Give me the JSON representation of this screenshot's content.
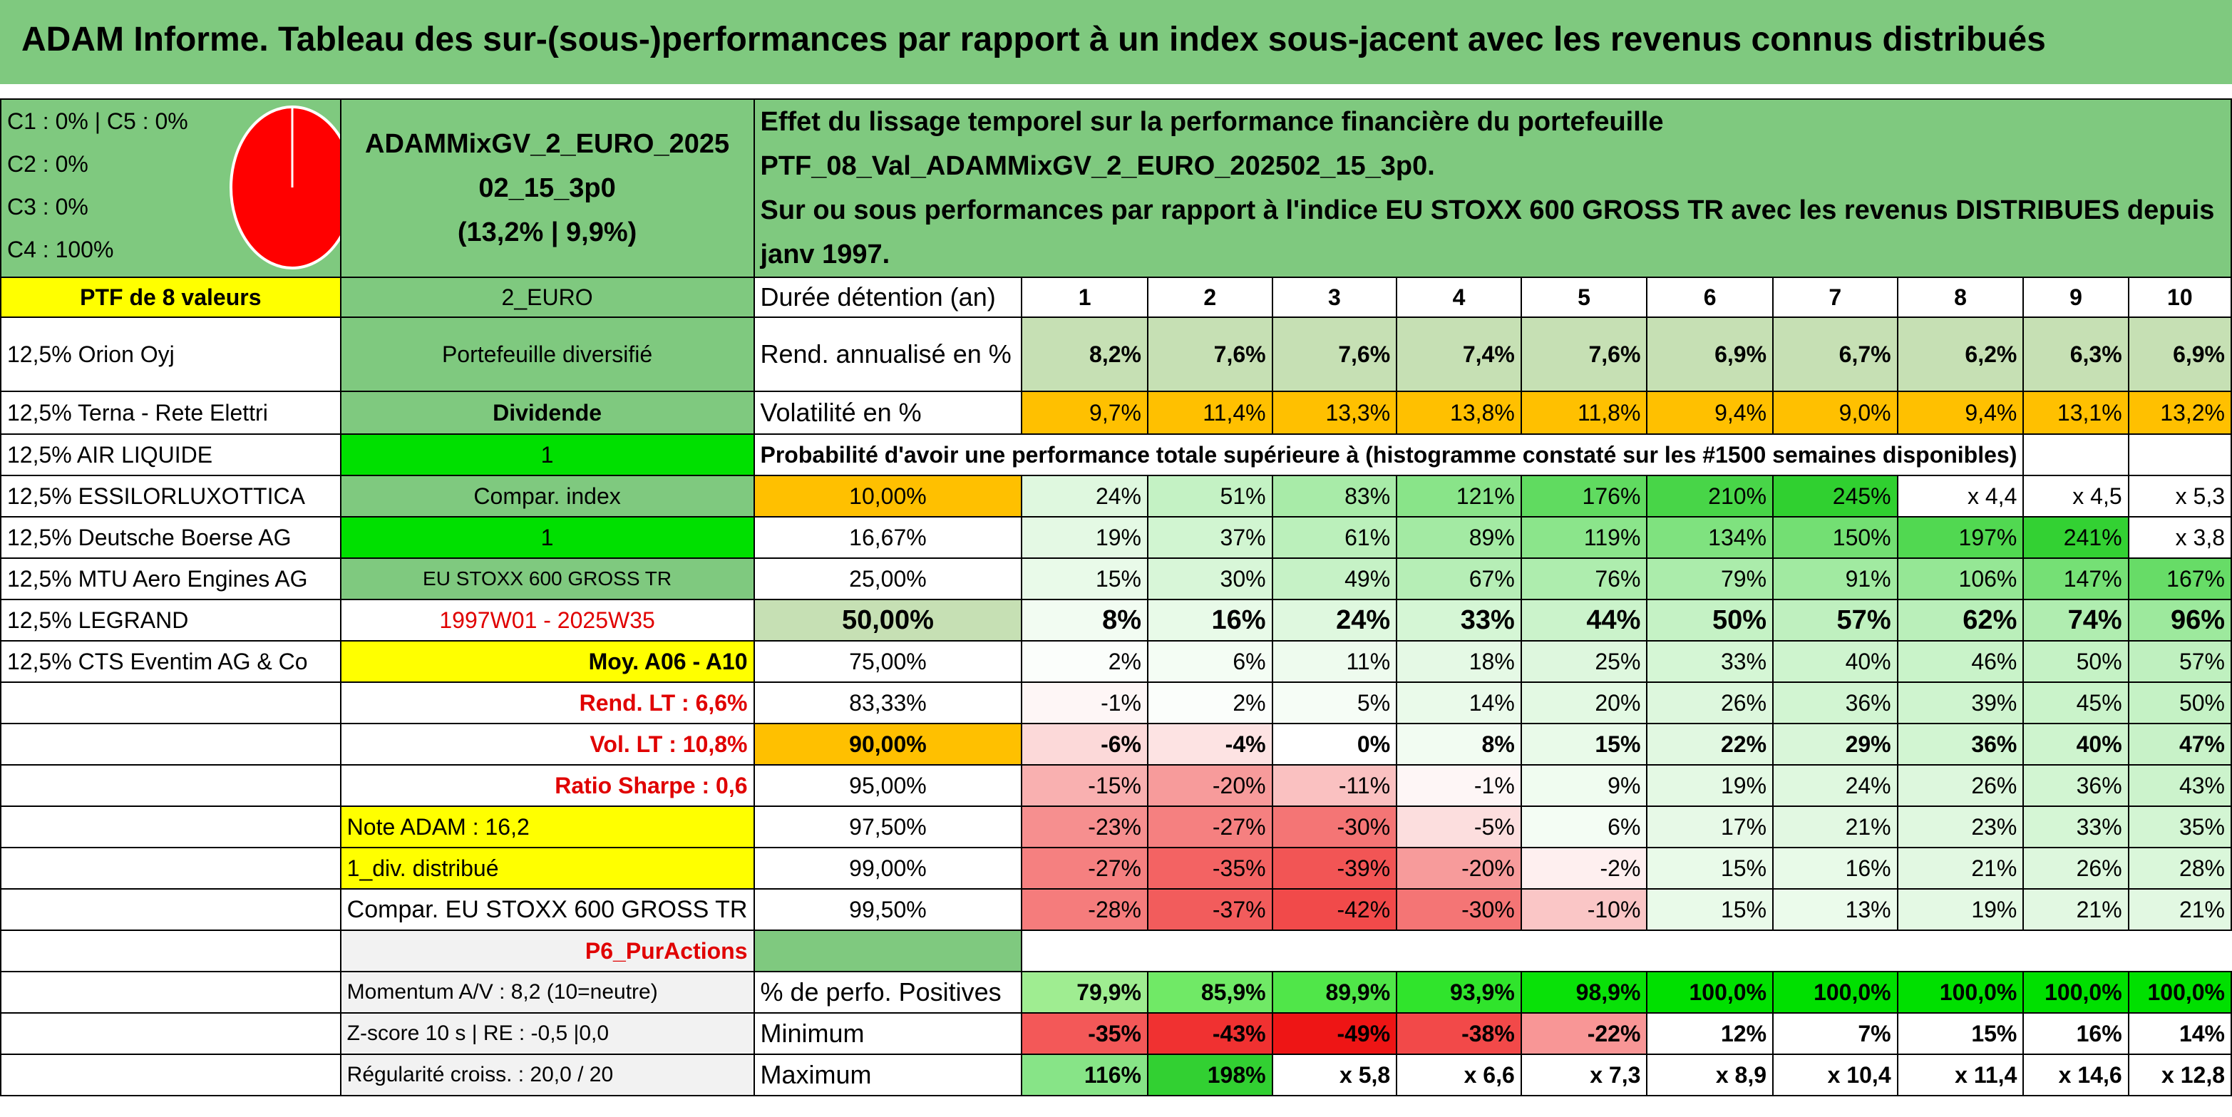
{
  "title": "ADAM Informe. Tableau des sur-(sous-)performances par rapport à un index sous-jacent avec les revenus connus distribués",
  "pie": {
    "legend": [
      "C1 : 0% | C5 : 0%",
      "C2 : 0%",
      "C3 : 0%",
      "C4 : 100%"
    ],
    "color": "#ff0000"
  },
  "fund": {
    "name_line1": "ADAMMixGV_2_EURO_2025",
    "name_line2": "02_15_3p0",
    "name_line3": "(13,2% | 9,9%)"
  },
  "effect_text": {
    "line1": "Effet du lissage temporel sur la performance financière du portefeuille PTF_08_Val_ADAMMixGV_2_EURO_202502_15_3p0.",
    "line2": "Sur ou sous performances par rapport à l'indice EU STOXX 600 GROSS TR avec les revenus DISTRIBUES depuis janv 1997."
  },
  "ptf_header": "PTF de 8 valeurs",
  "holdings": [
    "12,5% Orion Oyj",
    "12,5% Terna - Rete Elettri",
    "12,5% AIR LIQUIDE",
    "12,5% ESSILORLUXOTTICA",
    "12,5% Deutsche Boerse AG",
    "12,5% MTU Aero Engines AG",
    "12,5% LEGRAND",
    "12,5% CTS Eventim AG & Co"
  ],
  "info": {
    "currency": "2_EURO",
    "type": "Portefeuille diversifié",
    "dividend_label": "Dividende",
    "dividend_value": "1",
    "compar_label": "Compar. index",
    "compar_value": "1",
    "index_name": "EU STOXX 600 GROSS TR",
    "period": "1997W01 - 2025W35",
    "moy": "Moy. A06 - A10",
    "rend_lt": "Rend. LT : 6,6%",
    "vol_lt": "Vol. LT : 10,8%",
    "sharpe": "Ratio Sharpe : 0,6",
    "note": "Note ADAM : 16,2",
    "div": "1_div. distribué",
    "compar_full": "Compar. EU STOXX 600 GROSS TR",
    "p6": "P6_PurActions",
    "momentum": "Momentum A/V : 8,2 (10=neutre)",
    "zscore": "Z-score 10 s | RE : -0,5 |0,0",
    "regularite": "Régularité croiss. : 20,0 / 20"
  },
  "labels": {
    "duree": "Durée détention (an)",
    "rend": "Rend. annualisé en %",
    "vol": "Volatilité en %",
    "proba": "Probabilité d'avoir une performance totale supérieure à (histogramme constaté sur les #1500 semaines disponibles)",
    "pct_pos": "% de perfo. Positives",
    "min": "Minimum",
    "max": "Maximum"
  },
  "years": [
    "1",
    "2",
    "3",
    "4",
    "5",
    "6",
    "7",
    "8",
    "9",
    "10"
  ],
  "rend": [
    "8,2%",
    "7,6%",
    "7,6%",
    "7,4%",
    "7,6%",
    "6,9%",
    "6,7%",
    "6,2%",
    "6,3%",
    "6,9%"
  ],
  "vol": [
    "9,7%",
    "11,4%",
    "13,3%",
    "13,8%",
    "11,8%",
    "9,4%",
    "9,0%",
    "9,4%",
    "13,1%",
    "13,2%"
  ],
  "proba": [
    {
      "q": "10,00%",
      "v": [
        "24%",
        "51%",
        "83%",
        "121%",
        "176%",
        "210%",
        "245%",
        "x 4,4",
        "x 4,5",
        "x 5,3"
      ]
    },
    {
      "q": "16,67%",
      "v": [
        "19%",
        "37%",
        "61%",
        "89%",
        "119%",
        "134%",
        "150%",
        "197%",
        "241%",
        "x 3,8"
      ]
    },
    {
      "q": "25,00%",
      "v": [
        "15%",
        "30%",
        "49%",
        "67%",
        "76%",
        "79%",
        "91%",
        "106%",
        "147%",
        "167%"
      ]
    },
    {
      "q": "50,00%",
      "v": [
        "8%",
        "16%",
        "24%",
        "33%",
        "44%",
        "50%",
        "57%",
        "62%",
        "74%",
        "96%"
      ]
    },
    {
      "q": "75,00%",
      "v": [
        "2%",
        "6%",
        "11%",
        "18%",
        "25%",
        "33%",
        "40%",
        "46%",
        "50%",
        "57%"
      ]
    },
    {
      "q": "83,33%",
      "v": [
        "-1%",
        "2%",
        "5%",
        "14%",
        "20%",
        "26%",
        "36%",
        "39%",
        "45%",
        "50%"
      ]
    },
    {
      "q": "90,00%",
      "v": [
        "-6%",
        "-4%",
        "0%",
        "8%",
        "15%",
        "22%",
        "29%",
        "36%",
        "40%",
        "47%"
      ]
    },
    {
      "q": "95,00%",
      "v": [
        "-15%",
        "-20%",
        "-11%",
        "-1%",
        "9%",
        "19%",
        "24%",
        "26%",
        "36%",
        "43%"
      ]
    },
    {
      "q": "97,50%",
      "v": [
        "-23%",
        "-27%",
        "-30%",
        "-5%",
        "6%",
        "17%",
        "21%",
        "23%",
        "33%",
        "35%"
      ]
    },
    {
      "q": "99,00%",
      "v": [
        "-27%",
        "-35%",
        "-39%",
        "-20%",
        "-2%",
        "15%",
        "16%",
        "21%",
        "26%",
        "28%"
      ]
    },
    {
      "q": "99,50%",
      "v": [
        "-28%",
        "-37%",
        "-42%",
        "-30%",
        "-10%",
        "15%",
        "13%",
        "19%",
        "21%",
        "21%"
      ]
    }
  ],
  "pct_pos": [
    "79,9%",
    "85,9%",
    "89,9%",
    "93,9%",
    "98,9%",
    "100,0%",
    "100,0%",
    "100,0%",
    "100,0%",
    "100,0%"
  ],
  "min": [
    "-35%",
    "-43%",
    "-49%",
    "-38%",
    "-22%",
    "12%",
    "7%",
    "15%",
    "16%",
    "14%"
  ],
  "max": [
    "116%",
    "198%",
    "x 5,8",
    "x 6,6",
    "x 7,3",
    "x 8,9",
    "x 10,4",
    "x 11,4",
    "x 14,6",
    "x 12,8"
  ],
  "colors": {
    "header_green": "#7fc97f",
    "yellow": "#ffff00",
    "bright_green": "#00e000",
    "orange": "#ffc000",
    "pale_green": "#c6e0b4",
    "red": "#e00000"
  }
}
